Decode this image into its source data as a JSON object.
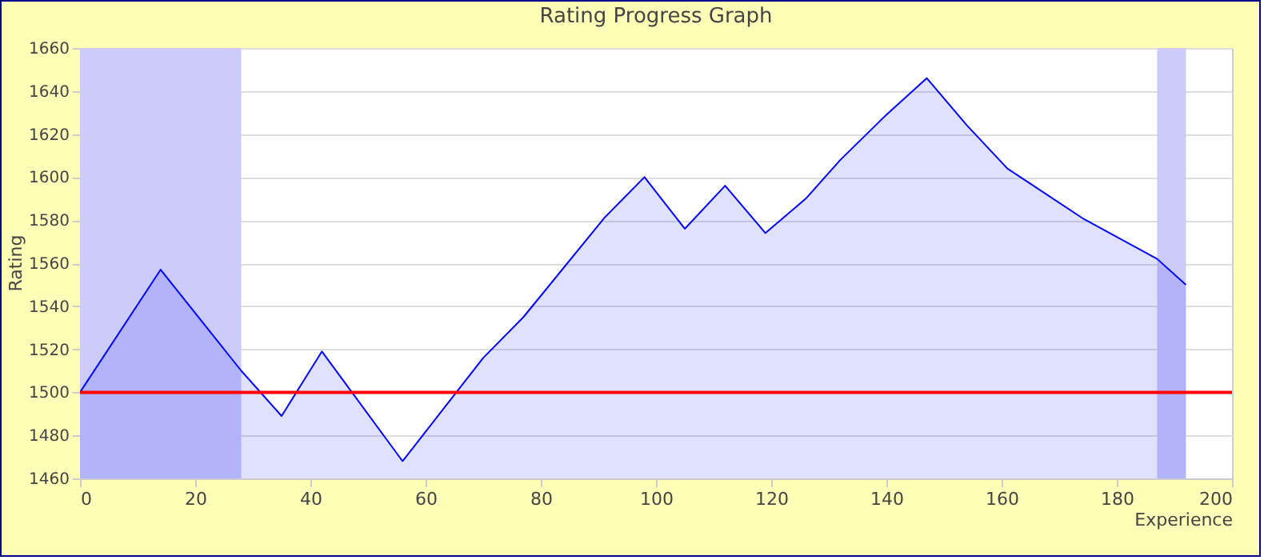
{
  "chart_data": {
    "type": "area",
    "title": "Rating Progress Graph",
    "xlabel": "Experience",
    "ylabel": "Rating",
    "x": [
      0,
      14,
      28,
      35,
      42,
      56,
      70,
      77,
      91,
      98,
      105,
      112,
      119,
      126,
      132,
      140,
      147,
      154,
      161,
      174,
      187,
      192
    ],
    "series": [
      {
        "color": "#0000ff",
        "values": [
          1500,
          1557,
          1510,
          1489,
          1519,
          1468,
          1516,
          1535,
          1581,
          1600,
          1576,
          1596,
          1574,
          1590,
          1608,
          1629,
          1646,
          1624,
          1604,
          1581,
          1562,
          1550
        ]
      }
    ],
    "xlim": [
      0,
      200
    ],
    "xticks": [
      0,
      20,
      40,
      60,
      80,
      100,
      120,
      140,
      160,
      180,
      200
    ],
    "ylim": [
      1460,
      1660
    ],
    "yticks": [
      1460,
      1480,
      1500,
      1520,
      1540,
      1560,
      1580,
      1600,
      1620,
      1640,
      1660
    ],
    "ref_lines": [
      {
        "axis": "y",
        "value": 1500,
        "color": "#ff0000"
      }
    ],
    "bands": [
      {
        "axis": "x",
        "from": 0,
        "to": 28,
        "color": "#ccccfa"
      },
      {
        "axis": "x",
        "from": 187,
        "to": 192,
        "color": "#ccccfa"
      }
    ],
    "grid": "y"
  }
}
